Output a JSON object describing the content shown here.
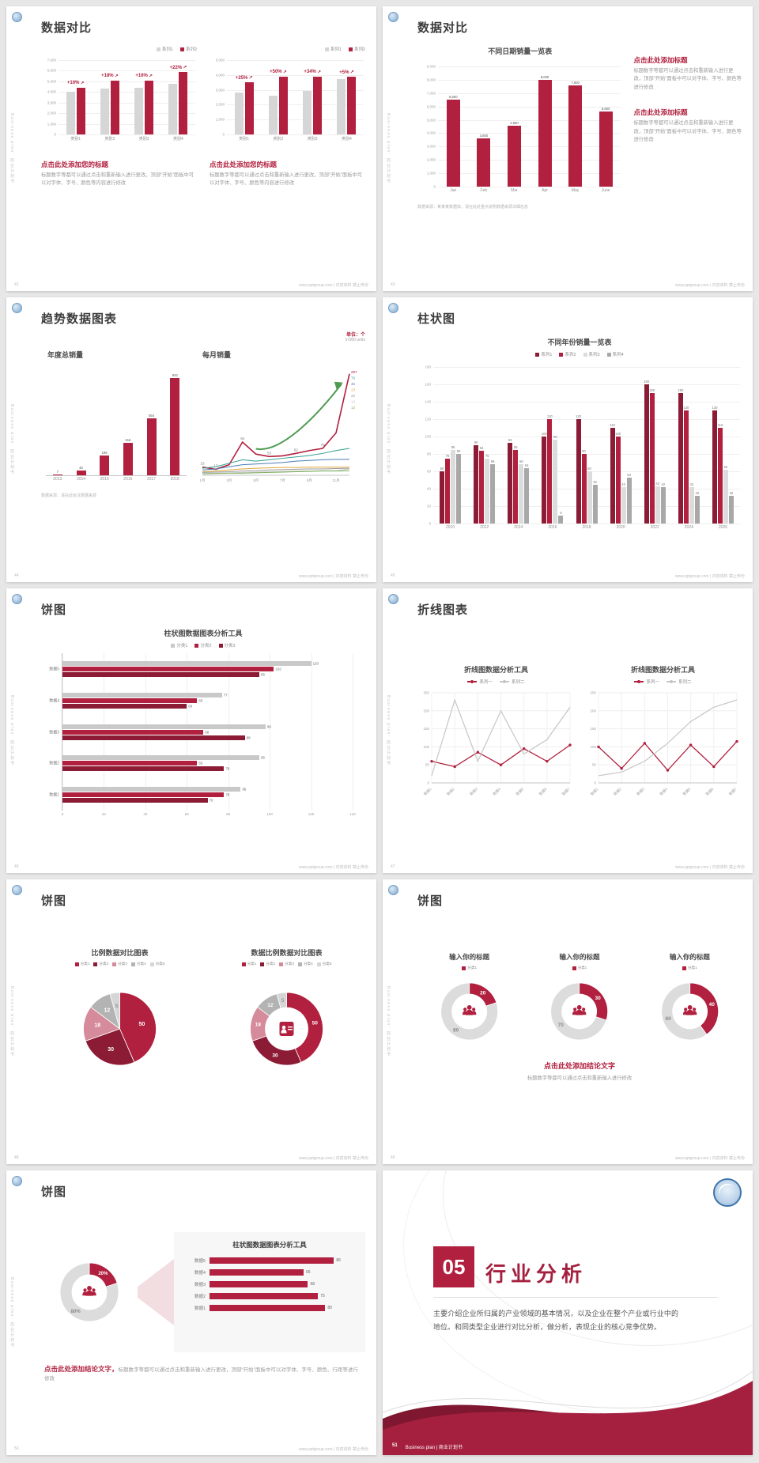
{
  "palette": {
    "red": "#b1203e",
    "dark_red": "#8c1b35",
    "light_red": "#d58b9b",
    "gray_bar": "#d6d6d6",
    "mid_gray": "#a8a8a8",
    "light_gray": "#dcdcdc",
    "text_dark": "#3c3c3c",
    "text_gray": "#999999",
    "background": "#e7e7e7",
    "accent_blue": "#3f74a8",
    "green": "#4e9a51"
  },
  "common": {
    "side_text": "Business plan．商业计划书",
    "footer_site": "www.pptgroup.com | 内容资料 禁止传份"
  },
  "slides": {
    "s42": {
      "page": "42",
      "title": "数据对比",
      "heading": "点击此处添加您的标题",
      "body": "标题数字等都可以通过点击和重新输入进行更改，顶部“开始”面板中可以对字体、字号、颜色等内容进行修改",
      "chart_left": {
        "type": "bar",
        "yticks": [
          "7,000",
          "6,000",
          "5,000",
          "4,000",
          "3,000",
          "2,000",
          "1,000",
          "0"
        ],
        "ymax": 7000,
        "categories": [
          "类别1",
          "类别2",
          "类别3",
          "类别4"
        ],
        "series": [
          {
            "name": "系列1",
            "color": "#d6d6d6",
            "values": [
              4000,
              4300,
              4400,
              4800
            ]
          },
          {
            "name": "系列2",
            "color": "#b1203e",
            "values": [
              4400,
              5070,
              5100,
              5850
            ]
          }
        ],
        "pct": [
          "+10%",
          "+18%",
          "+16%",
          "+22%"
        ]
      },
      "chart_right": {
        "type": "bar",
        "yticks": [
          "5,000",
          "4,000",
          "3,000",
          "2,000",
          "1,000",
          "0"
        ],
        "ymax": 5000,
        "categories": [
          "类别1",
          "类别2",
          "类别3",
          "类别4"
        ],
        "series": [
          {
            "name": "系列1",
            "color": "#d6d6d6",
            "values": [
              2800,
              2600,
              2900,
              3700
            ]
          },
          {
            "name": "系列2",
            "color": "#b1203e",
            "values": [
              3500,
              3900,
              3890,
              3880
            ]
          }
        ],
        "pct": [
          "+25%",
          "+50%",
          "+34%",
          "+5%"
        ]
      }
    },
    "s43": {
      "page": "43",
      "title": "数据对比",
      "chart_title": "不同日期销量一览表",
      "chart": {
        "type": "bar",
        "yticks": [
          "9,000",
          "8,000",
          "7,000",
          "6,000",
          "5,000",
          "4,000",
          "3,000",
          "2,000",
          "1,000",
          "0"
        ],
        "ymax": 9000,
        "categories": [
          "Jan",
          "Feb",
          "Mar",
          "Apr",
          "May",
          "June"
        ],
        "values": [
          6500,
          3600,
          4560,
          8000,
          7600,
          5600
        ],
        "labels": [
          "6,500",
          "3,600",
          "4,560",
          "8,000",
          "7,600",
          "5,600"
        ]
      },
      "note": "数据来源：某某某数据库，请在此处重点说明数据来源详细信息",
      "blocks": [
        {
          "heading": "点击此处添加标题",
          "body": "标题数字等都可以通过点击和重新输入进行更改，顶部“开始”面板中可以对字体、字号、颜色等进行修改"
        },
        {
          "heading": "点击此处添加标题",
          "body": "标题数字等都可以通过点击和重新输入进行更改，顶部“开始”面板中可以对字体、字号、颜色等进行修改"
        }
      ]
    },
    "s44": {
      "page": "44",
      "title": "趋势数据图表",
      "unit_red": "单位：个",
      "unit_gray": "in'000 units",
      "note": "数据来源：请在此标注数据来源",
      "left": {
        "type": "bar",
        "subtitle": "年度总销量",
        "categories": [
          "2013",
          "2014",
          "2015",
          "2016",
          "2017",
          "2018"
        ],
        "values": [
          7,
          45,
          196,
          316,
          554,
          943
        ],
        "labels": [
          "7",
          "45",
          "196",
          "316",
          "554",
          "943"
        ],
        "ymax": 1000
      },
      "right": {
        "type": "line",
        "subtitle": "每月销量",
        "xlabels": [
          "1月",
          "3月",
          "5月",
          "7月",
          "9月",
          "11月"
        ],
        "x_idx": [
          0,
          2,
          4,
          6,
          8,
          10
        ],
        "ymax": 300,
        "series": [
          {
            "color": "#b1203e",
            "w": 1.6,
            "values": [
              23,
              17,
              30,
              94,
              60,
              53,
              55,
              62,
              70,
              76,
              120,
              287
            ],
            "end": "287"
          },
          {
            "color": "#2f9e8f",
            "w": 1,
            "values": [
              20,
              24,
              34,
              44,
              40,
              44,
              48,
              52,
              56,
              62,
              70,
              76
            ],
            "end": "76"
          },
          {
            "color": "#4a7fb5",
            "w": 1,
            "values": [
              15,
              18,
              24,
              30,
              32,
              34,
              36,
              40,
              42,
              44,
              45,
              45
            ],
            "end": "45"
          },
          {
            "color": "#e0a63c",
            "w": 1,
            "values": [
              10,
              12,
              15,
              18,
              20,
              21,
              22,
              22,
              23,
              23,
              23,
              23
            ],
            "end": "23"
          },
          {
            "color": "#9a9a9a",
            "w": 1,
            "values": [
              8,
              9,
              10,
              12,
              13,
              15,
              16,
              17,
              18,
              18,
              19,
              20
            ],
            "end": "20"
          },
          {
            "color": "#c9c9c9",
            "w": 1,
            "values": [
              5,
              6,
              7,
              8,
              9,
              10,
              11,
              12,
              12,
              13,
              13,
              18
            ],
            "end": "18"
          },
          {
            "color": "#7cb15a",
            "w": 1,
            "values": [
              4,
              5,
              6,
              6,
              7,
              8,
              9,
              10,
              11,
              12,
              12,
              13
            ],
            "end": "13"
          }
        ],
        "point_labels": [
          {
            "i": 0,
            "v": "23"
          },
          {
            "i": 1,
            "v": "17"
          },
          {
            "i": 3,
            "v": "94"
          },
          {
            "i": 5,
            "v": "53"
          },
          {
            "i": 7,
            "v": "62"
          },
          {
            "i": 9,
            "v": "76"
          }
        ]
      }
    },
    "s45": {
      "page": "45",
      "title": "柱状图",
      "chart_title": "不同年份销量一览表",
      "type": "bar",
      "legend": [
        "系列1",
        "系列2",
        "系列3",
        "系列4"
      ],
      "yticks": [
        "180",
        "160",
        "140",
        "120",
        "100",
        "80",
        "60",
        "40",
        "20",
        "0"
      ],
      "ymax": 180,
      "categories": [
        "2010",
        "2012",
        "2014",
        "2016",
        "2018",
        "2020",
        "2022",
        "2024",
        "2026"
      ],
      "series": [
        {
          "name": "系列1",
          "color": "#8c1b35",
          "labels": true,
          "values": [
            60,
            90,
            93,
            100,
            120,
            110,
            160,
            150,
            130
          ]
        },
        {
          "name": "系列2",
          "color": "#b1203e",
          "labels": true,
          "values": [
            75,
            84,
            85,
            120,
            80,
            100,
            150,
            130,
            110
          ]
        },
        {
          "name": "系列3",
          "color": "#dcdcdc",
          "labels": true,
          "values": [
            85,
            75,
            68,
            96,
            60,
            42,
            43,
            42,
            62
          ]
        },
        {
          "name": "系列4",
          "color": "#a8a8a8",
          "labels": true,
          "values": [
            80,
            68,
            64,
            9,
            45,
            53,
            42,
            32,
            32
          ]
        }
      ]
    },
    "s46": {
      "page": "46",
      "title": "饼图",
      "chart_title": "柱状图数据图表分析工具",
      "type": "bar-horizontal",
      "legend": [
        "分类1",
        "分类2",
        "分类3"
      ],
      "rows": [
        "数据5",
        "数据4",
        "数据3",
        "数据2",
        "数据1"
      ],
      "series": [
        {
          "name": "分类1",
          "color": "#c9c9c9",
          "values": [
            120,
            77,
            98,
            95,
            86
          ]
        },
        {
          "name": "分类2",
          "color": "#b1203e",
          "values": [
            102,
            65,
            68,
            65,
            78
          ]
        },
        {
          "name": "分类3",
          "color": "#8c1b35",
          "values": [
            95,
            60,
            88,
            78,
            70
          ]
        }
      ],
      "xticks": [
        "0",
        "20",
        "40",
        "60",
        "80",
        "100",
        "120",
        "140"
      ],
      "xmax": 140
    },
    "s47": {
      "page": "47",
      "title": "折线图表",
      "charts": [
        {
          "type": "line",
          "chart_title": "折线图数据分析工具",
          "legend": [
            "系列一",
            "系列二"
          ],
          "yticks": [
            "250",
            "200",
            "150",
            "100",
            "50",
            "0"
          ],
          "ymax": 250,
          "xlabels": [
            "数据1",
            "数据2",
            "数据3",
            "数据4",
            "数据5",
            "数据6",
            "数据7"
          ],
          "series_red": [
            60,
            45,
            85,
            50,
            95,
            60,
            105
          ],
          "series_gray": [
            20,
            230,
            60,
            200,
            80,
            120,
            210
          ]
        },
        {
          "type": "line",
          "chart_title": "折线图数据分析工具",
          "legend": [
            "系列一",
            "系列二"
          ],
          "yticks": [
            "250",
            "200",
            "150",
            "100",
            "50",
            "0"
          ],
          "ymax": 250,
          "xlabels": [
            "数据1",
            "数据2",
            "数据3",
            "数据4",
            "数据5",
            "数据6",
            "数据7"
          ],
          "series_red": [
            100,
            40,
            110,
            35,
            105,
            45,
            115
          ],
          "series_gray": [
            20,
            30,
            60,
            110,
            170,
            210,
            230
          ]
        }
      ]
    },
    "s48": {
      "page": "48",
      "title": "饼图",
      "left": {
        "type": "pie",
        "chart_title": "比例数据对比图表",
        "legend": [
          "分类1",
          "分类2",
          "分类3",
          "分类4",
          "分类5"
        ],
        "values": [
          50,
          30,
          18,
          12,
          5
        ],
        "labels": [
          "50",
          "30",
          "18",
          "12",
          "5"
        ],
        "colors": [
          "#b1203e",
          "#8c1b35",
          "#d58b9b",
          "#b3b3b3",
          "#d6d6d6"
        ],
        "label_colors": [
          "#ffffff",
          "#ffffff",
          "#ffffff",
          "#ffffff",
          "#999999"
        ]
      },
      "right": {
        "type": "donut",
        "chart_title": "数据比例数据对比图表",
        "legend": [
          "分类1",
          "分类2",
          "分类3",
          "分类4",
          "分类5"
        ],
        "values": [
          50,
          30,
          18,
          12,
          5
        ],
        "labels": [
          "50",
          "30",
          "18",
          "12",
          "5"
        ],
        "colors": [
          "#b1203e",
          "#8c1b35",
          "#d58b9b",
          "#b3b3b3",
          "#d6d6d6"
        ],
        "label_colors": [
          "#ffffff",
          "#ffffff",
          "#ffffff",
          "#ffffff",
          "#999999"
        ]
      }
    },
    "s49": {
      "page": "49",
      "title": "饼图",
      "items": [
        {
          "chart_title": "输入你的标题",
          "legend": "分类1",
          "type": "donut",
          "red": 20,
          "gray": 80
        },
        {
          "chart_title": "输入你的标题",
          "legend": "分类1",
          "type": "donut",
          "red": 30,
          "gray": 70
        },
        {
          "chart_title": "输入你的标题",
          "legend": "分类1",
          "type": "donut",
          "red": 40,
          "gray": 60
        }
      ],
      "conclusion": "点击此处添加结论文字",
      "body": "标题数字等都可以通过点击和重新输入进行修改"
    },
    "s50": {
      "page": "50",
      "title": "饼图",
      "donut": {
        "type": "donut",
        "red": 20,
        "gray": 80,
        "red_label": "20%",
        "gray_label": "80%"
      },
      "panel": {
        "chart_title": "柱状图数据图表分析工具",
        "rows": [
          "数据5",
          "数据4",
          "数据3",
          "数据2",
          "数据1"
        ],
        "values": [
          86,
          65,
          68,
          75,
          80
        ],
        "xmax": 100
      },
      "conclusion": "点击此处添加结论文字，",
      "body": "标题数字等都可以通过点击和重新输入进行更改，顶部“开始”面板中可以对字体、字号、颜色、行距等进行修改"
    },
    "s51": {
      "page": "51",
      "number": "05",
      "title": "行业分析",
      "body": "主要介绍企业所归属的产业领域的基本情况，以及企业在整个产业或行业中的地位。和同类型企业进行对比分析，做分析，表现企业的核心竞争优势。",
      "footer": "Business plan | 商业计划书"
    }
  }
}
